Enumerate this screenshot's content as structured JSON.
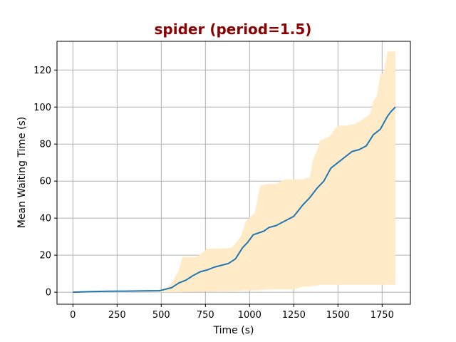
{
  "colors": {
    "title": "#8b0000",
    "mean_line": "#1f77b4",
    "band": "#ffebc8",
    "grid": "#b0b0b0"
  },
  "chart_data": {
    "type": "line",
    "title": "spider (period=1.5)",
    "xlabel": "Time (s)",
    "ylabel": "Mean Waiting Time (s)",
    "xlim": [
      -90,
      1910
    ],
    "ylim": [
      -6.5,
      135.5
    ],
    "xticks": [
      0,
      250,
      500,
      750,
      1000,
      1250,
      1500,
      1750
    ],
    "yticks": [
      0,
      20,
      40,
      60,
      80,
      100,
      120
    ],
    "grid": true,
    "series": [
      {
        "type": "line",
        "x": [
          0,
          100,
          200,
          300,
          400,
          490,
          520,
          560,
          600,
          640,
          680,
          720,
          760,
          800,
          840,
          880,
          920,
          960,
          990,
          1020,
          1050,
          1080,
          1110,
          1150,
          1200,
          1250,
          1300,
          1340,
          1380,
          1420,
          1460,
          1500,
          1540,
          1580,
          1620,
          1660,
          1700,
          1740,
          1780,
          1800,
          1825
        ],
        "y": [
          0,
          0.3,
          0.5,
          0.6,
          0.7,
          0.8,
          1.5,
          2.5,
          5,
          6.5,
          9,
          11,
          12,
          13.5,
          14.5,
          15.5,
          18,
          24,
          27,
          31,
          32,
          33,
          35,
          36,
          38.5,
          41,
          47,
          51,
          56,
          60,
          67,
          70,
          73,
          76,
          77,
          79,
          85,
          88,
          95,
          97.5,
          100
        ]
      }
    ],
    "band": {
      "x": [
        0,
        480,
        520,
        560,
        600,
        620,
        700,
        760,
        840,
        900,
        950,
        980,
        1030,
        1060,
        1100,
        1150,
        1200,
        1250,
        1300,
        1340,
        1360,
        1380,
        1400,
        1450,
        1500,
        1550,
        1600,
        1650,
        1680,
        1700,
        1720,
        1740,
        1760,
        1780,
        1825
      ],
      "upper": [
        0.5,
        0.8,
        2,
        5,
        12,
        19,
        19,
        23.5,
        23.5,
        24,
        30,
        38.5,
        43,
        57.5,
        58.5,
        58.5,
        61,
        61,
        61,
        62,
        72,
        76,
        82,
        84,
        90,
        90,
        91,
        94,
        96,
        103,
        106,
        118,
        118,
        130,
        130
      ],
      "lower": [
        0,
        0,
        0,
        0,
        0,
        0.1,
        0.2,
        0.4,
        0.5,
        0.6,
        0.8,
        1,
        1,
        1,
        1.5,
        1.5,
        1.5,
        1.5,
        3,
        3,
        3.5,
        3.5,
        4,
        4,
        4,
        4,
        4,
        4,
        4,
        4,
        4,
        4,
        4,
        4,
        4
      ]
    }
  }
}
